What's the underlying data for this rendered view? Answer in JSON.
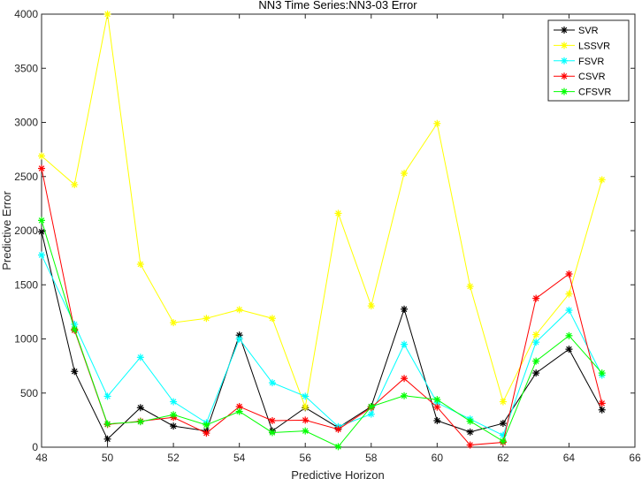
{
  "chart_data": {
    "type": "line",
    "title": "NN3 Time Series:NN3-03 Error",
    "xlabel": "Predictive Horizon",
    "ylabel": "Predictive Error",
    "xlim": [
      48,
      66
    ],
    "ylim": [
      0,
      4000
    ],
    "xticks": [
      48,
      50,
      52,
      54,
      56,
      58,
      60,
      62,
      64,
      66
    ],
    "yticks": [
      0,
      500,
      1000,
      1500,
      2000,
      2500,
      3000,
      3500,
      4000
    ],
    "grid": false,
    "legend_position": "top-right",
    "marker": "asterisk",
    "x": [
      48,
      49,
      50,
      51,
      52,
      53,
      54,
      55,
      56,
      57,
      58,
      59,
      60,
      61,
      62,
      63,
      64,
      65
    ],
    "series": [
      {
        "name": "SVR",
        "color": "#000000",
        "values": [
          1990,
          700,
          75,
          365,
          195,
          150,
          1035,
          150,
          365,
          180,
          375,
          1275,
          245,
          140,
          220,
          685,
          905,
          345
        ]
      },
      {
        "name": "LSSVR",
        "color": "#ffff00",
        "values": [
          2690,
          2425,
          4000,
          1690,
          1150,
          1190,
          1270,
          1190,
          370,
          2160,
          1305,
          2530,
          2990,
          1485,
          420,
          1040,
          1415,
          2470
        ]
      },
      {
        "name": "FSVR",
        "color": "#00ffff",
        "values": [
          1775,
          1135,
          470,
          830,
          420,
          225,
          1000,
          595,
          470,
          190,
          305,
          950,
          410,
          260,
          110,
          970,
          1265,
          665
        ]
      },
      {
        "name": "CSVR",
        "color": "#ff0000",
        "values": [
          2575,
          1080,
          210,
          240,
          275,
          130,
          375,
          245,
          250,
          165,
          365,
          635,
          370,
          20,
          45,
          1375,
          1600,
          405
        ]
      },
      {
        "name": "CFSVR",
        "color": "#00ff00",
        "values": [
          2095,
          1090,
          215,
          235,
          300,
          205,
          330,
          135,
          150,
          5,
          375,
          475,
          440,
          240,
          55,
          795,
          1030,
          685
        ]
      }
    ]
  }
}
